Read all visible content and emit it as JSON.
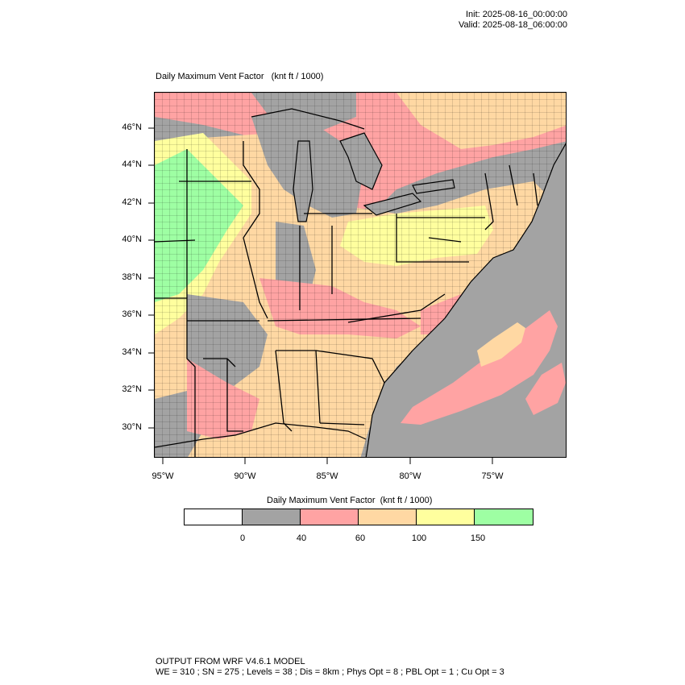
{
  "header": {
    "init": "Init: 2025-08-16_00:00:00",
    "valid": "Valid: 2025-08-18_06:00:00"
  },
  "map": {
    "title": "Daily Maximum Vent Factor",
    "units": "(knt ft / 1000)",
    "lat_labels": [
      "46°N",
      "44°N",
      "42°N",
      "40°N",
      "38°N",
      "36°N",
      "34°N",
      "32°N",
      "30°N"
    ],
    "lon_labels": [
      "95°W",
      "90°W",
      "85°W",
      "80°W",
      "75°W"
    ]
  },
  "colorbar": {
    "title": "Daily Maximum Vent Factor",
    "units": "(knt ft / 1000)",
    "colors": [
      "#ffffff",
      "#a3a3a3",
      "#ffa3a3",
      "#ffd8a3",
      "#ffff9e",
      "#9effa3"
    ],
    "tick_labels": [
      "0",
      "40",
      "60",
      "100",
      "150"
    ]
  },
  "footer": {
    "line1": "OUTPUT FROM WRF V4.6.1 MODEL",
    "line2": "WE = 310 ; SN = 275 ; Levels = 38 ; Dis = 8km ; Phys Opt = 8 ; PBL Opt = 1 ; Cu Opt = 3"
  }
}
